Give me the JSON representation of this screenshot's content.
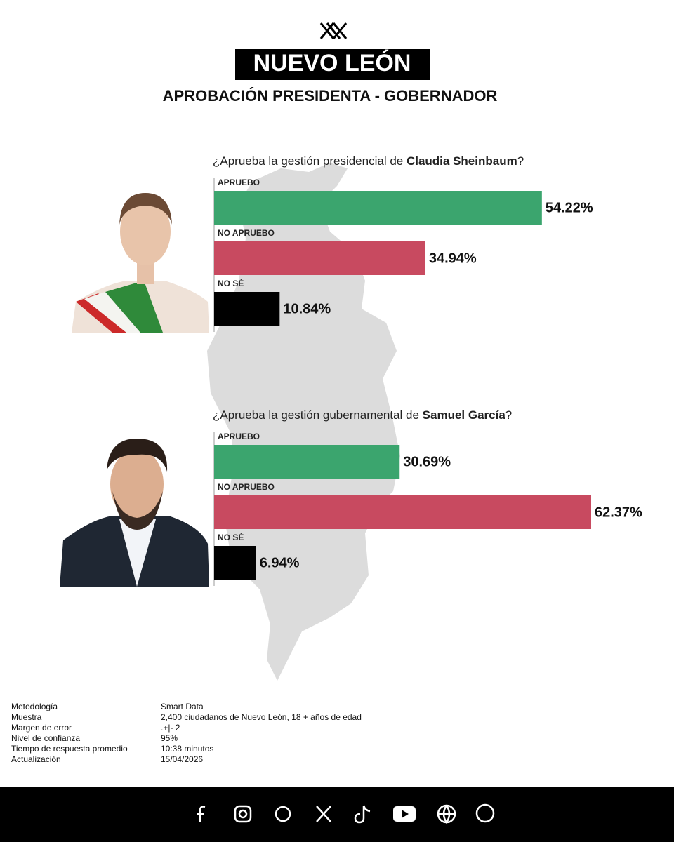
{
  "header": {
    "title": "NUEVO LEÓN",
    "subtitle": "APROBACIÓN PRESIDENTA - GOBERNADOR"
  },
  "chart_data": [
    {
      "type": "bar",
      "orientation": "horizontal",
      "title": {
        "prefix": "¿Aprueba la gestión presidencial de ",
        "name": "Claudia Sheinbaum",
        "suffix": "?"
      },
      "categories": [
        "APRUEBO",
        "NO APRUEBO",
        "NO SÉ"
      ],
      "values": [
        54.22,
        34.94,
        10.84
      ],
      "value_labels": [
        "54.22%",
        "34.94%",
        "10.84%"
      ],
      "colors": [
        "#3ba56e",
        "#c84a60",
        "#000000"
      ]
    },
    {
      "type": "bar",
      "orientation": "horizontal",
      "title": {
        "prefix": "¿Aprueba la gestión gubernamental de ",
        "name": "Samuel García",
        "suffix": "?"
      },
      "categories": [
        "APRUEBO",
        "NO APRUEBO",
        "NO SÉ"
      ],
      "values": [
        30.69,
        62.37,
        6.94
      ],
      "value_labels": [
        "30.69%",
        "62.37%",
        "6.94%"
      ],
      "colors": [
        "#3ba56e",
        "#c84a60",
        "#000000"
      ]
    }
  ],
  "methodology": {
    "rows": [
      [
        "Metodología",
        "Smart Data"
      ],
      [
        "Muestra",
        "2,400 ciudadanos de Nuevo León, 18 + años de edad"
      ],
      [
        "Margen de error",
        ".+|- 2"
      ],
      [
        "Nivel de confianza",
        "95%"
      ],
      [
        "Tiempo de respuesta promedio",
        "10:38 minutos"
      ],
      [
        "Actualización",
        "15/04/2026"
      ]
    ]
  }
}
